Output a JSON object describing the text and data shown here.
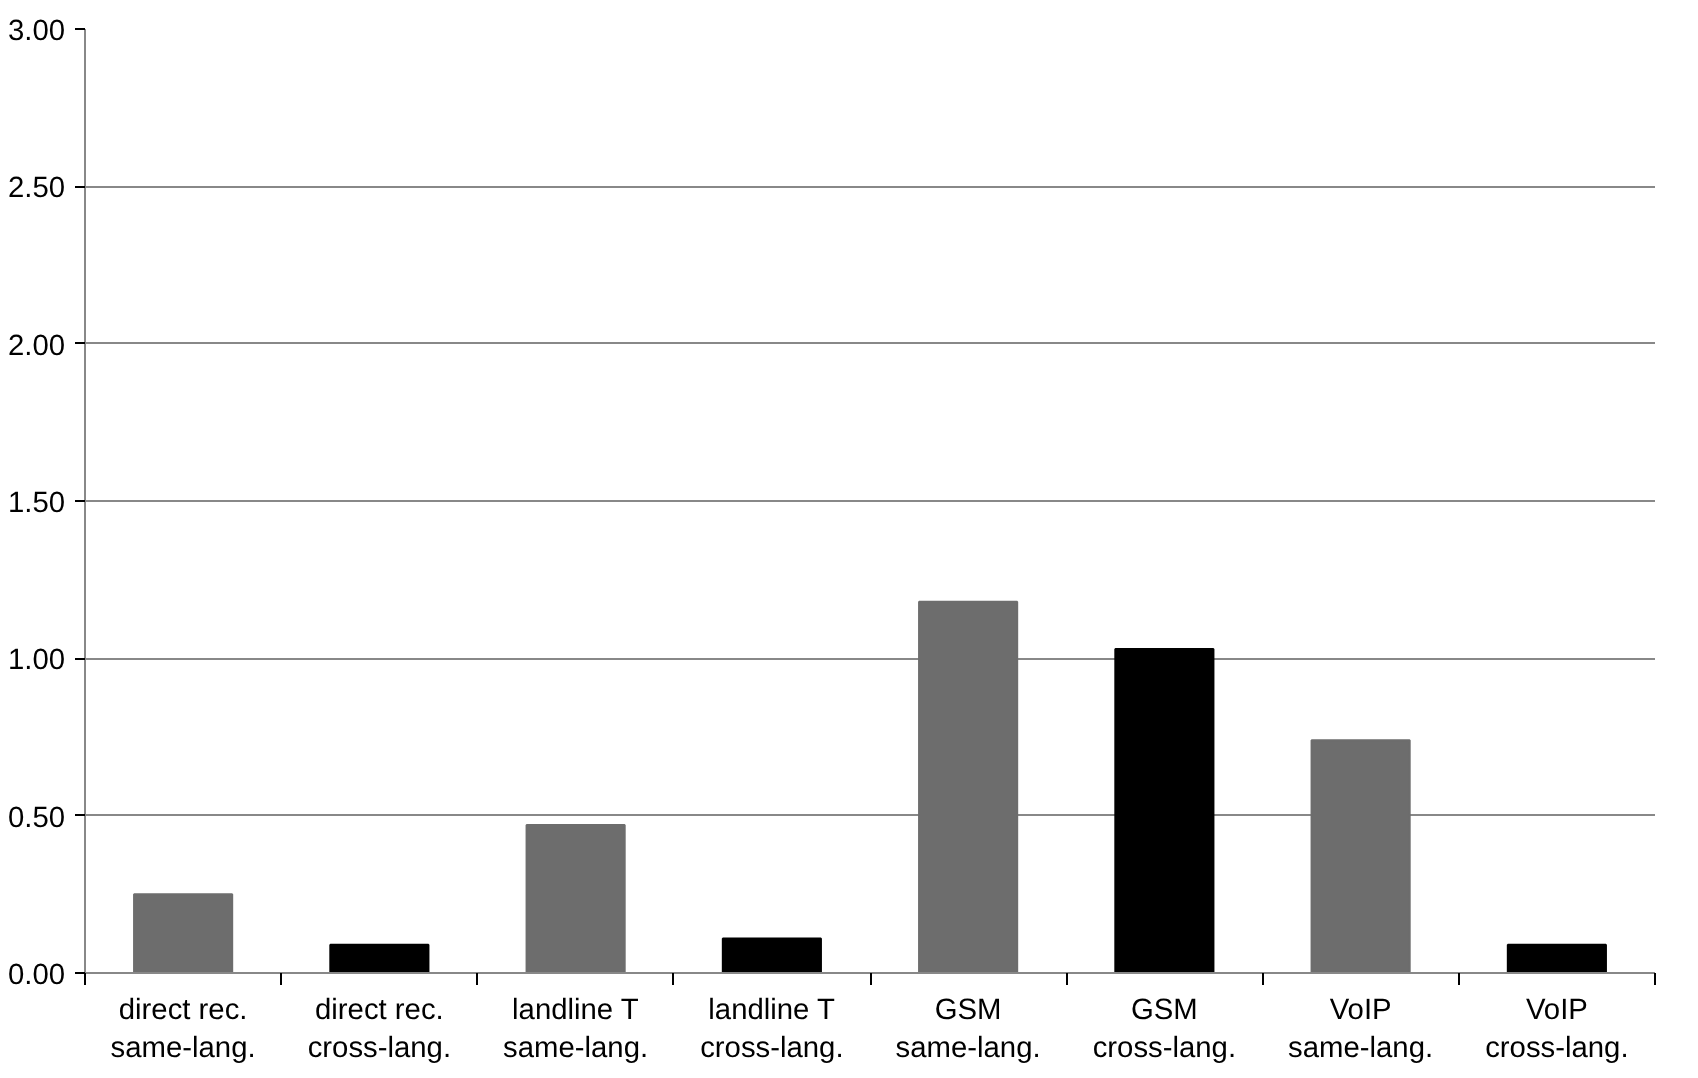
{
  "chart_data": {
    "type": "bar",
    "categories": [
      "direct rec.\nsame-lang.",
      "direct rec.\ncross-lang.",
      "landline T\nsame-lang.",
      "landline T\ncross-lang.",
      "GSM\nsame-lang.",
      "GSM\ncross-lang.",
      "VoIP\nsame-lang.",
      "VoIP\ncross-lang."
    ],
    "values": [
      0.25,
      0.09,
      0.47,
      0.11,
      1.18,
      1.03,
      0.74,
      0.09
    ],
    "colors": [
      "#6d6d6d",
      "#000000",
      "#6d6d6d",
      "#000000",
      "#6d6d6d",
      "#000000",
      "#6d6d6d",
      "#000000"
    ],
    "ylim": [
      0,
      3
    ],
    "yticks": [
      {
        "value": 0,
        "label": "0.00"
      },
      {
        "value": 0.5,
        "label": "0.50"
      },
      {
        "value": 1,
        "label": "1.00"
      },
      {
        "value": 1.5,
        "label": "1.50"
      },
      {
        "value": 2,
        "label": "2.00"
      },
      {
        "value": 2.5,
        "label": "2.50"
      },
      {
        "value": 3,
        "label": "3.00"
      }
    ],
    "grid": "y"
  }
}
